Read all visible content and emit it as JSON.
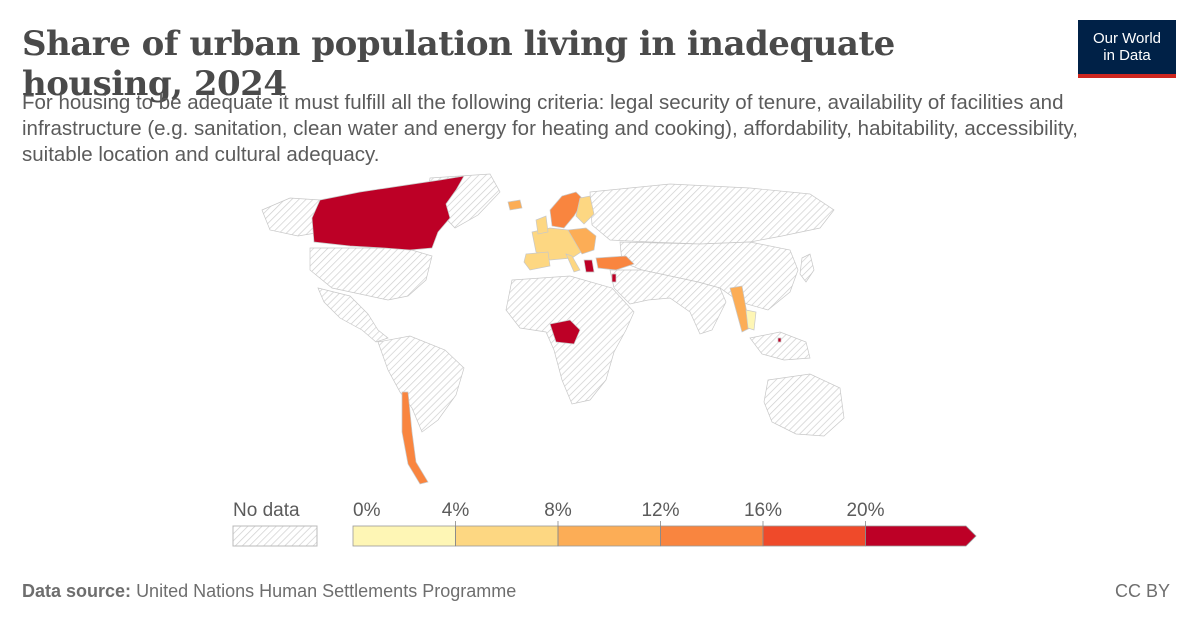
{
  "header": {
    "title": "Share of urban population living in inadequate housing, 2024",
    "subtitle": "For housing to be adequate it must fulfill all the following criteria: legal security of tenure, availability of facilities and infrastructure (e.g. sanitation, clean water and energy for heating and cooking), affordability, habitability, accessibility, suitable location and cultural adequacy.",
    "logo_line1": "Our World",
    "logo_line2": "in Data"
  },
  "legend": {
    "no_data_label": "No data",
    "bins": [
      {
        "label": "0%",
        "color": "#fef6b5"
      },
      {
        "label": "4%",
        "color": "#fdd782"
      },
      {
        "label": "8%",
        "color": "#fcad56"
      },
      {
        "label": "12%",
        "color": "#f9853f"
      },
      {
        "label": "16%",
        "color": "#ef4a2a"
      },
      {
        "label": "20%",
        "color": "#bd0026"
      }
    ]
  },
  "colors": {
    "no_data_hatch": "#c9c9c9",
    "land_outline": "#d0d0d0"
  },
  "footer": {
    "source_label": "Data source:",
    "source_text": "United Nations Human Settlements Programme",
    "license": "CC BY"
  }
}
